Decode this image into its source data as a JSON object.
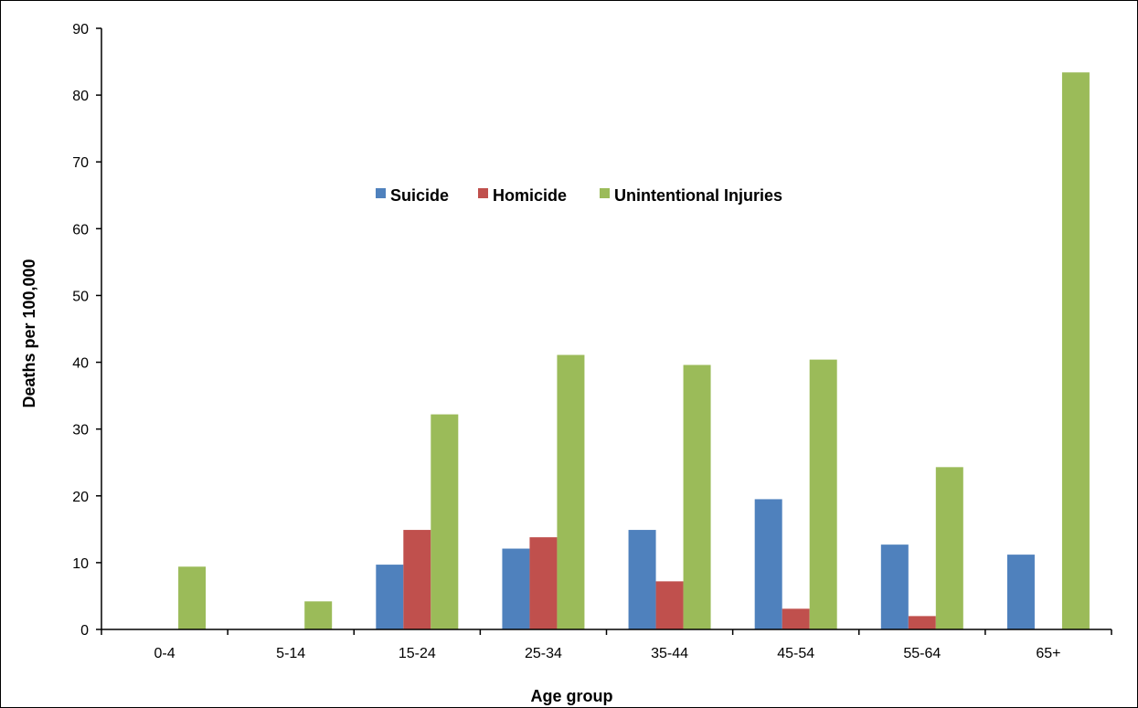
{
  "chart_data": {
    "type": "bar",
    "title": "",
    "xlabel": "Age group",
    "ylabel": "Deaths per 100,000",
    "ylim": [
      0,
      90
    ],
    "yticks": [
      0,
      10,
      20,
      30,
      40,
      50,
      60,
      70,
      80,
      90
    ],
    "categories": [
      "0-4",
      "5-14",
      "15-24",
      "25-34",
      "35-44",
      "45-54",
      "55-64",
      "65+"
    ],
    "series": [
      {
        "name": "Suicide",
        "color": "#4F81BD",
        "values": [
          0,
          0,
          9.7,
          12.1,
          14.9,
          19.5,
          12.7,
          11.2
        ]
      },
      {
        "name": "Homicide",
        "color": "#C0504D",
        "values": [
          0,
          0,
          14.9,
          13.8,
          7.2,
          3.1,
          2.0,
          0
        ]
      },
      {
        "name": "Unintentional Injuries",
        "color": "#9BBB59",
        "values": [
          9.4,
          4.2,
          32.2,
          41.1,
          39.6,
          40.4,
          24.3,
          83.4
        ]
      }
    ],
    "grid": false,
    "legend_position": "center"
  }
}
